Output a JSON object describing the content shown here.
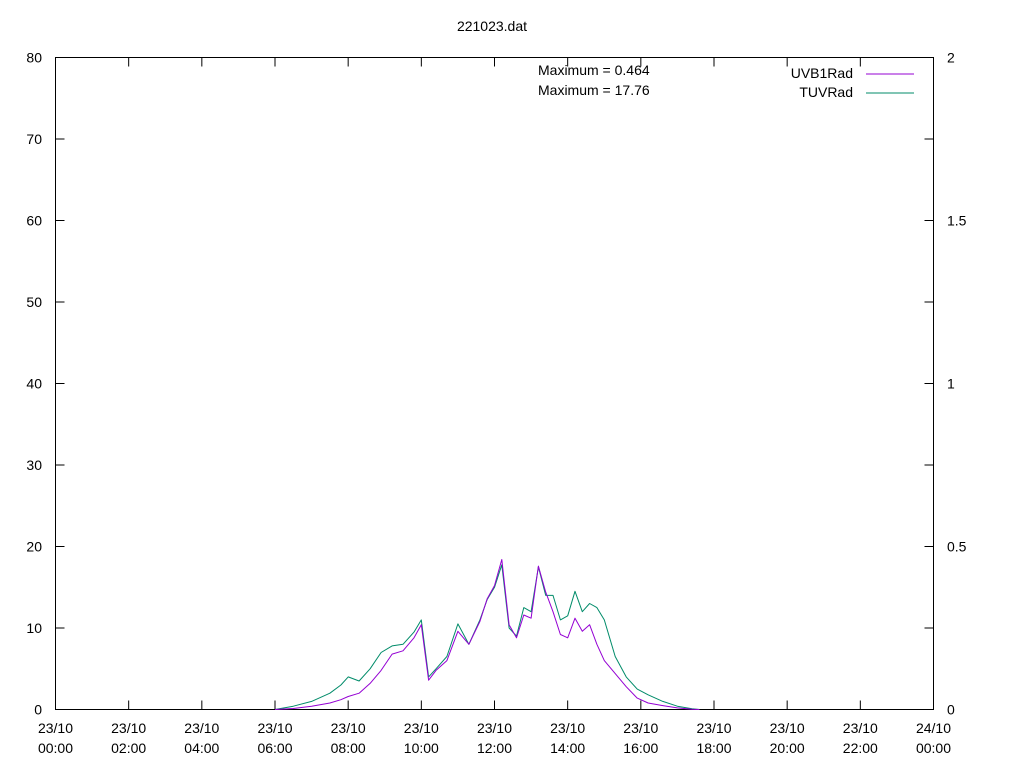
{
  "chart_data": {
    "type": "line",
    "title": "221023.dat",
    "x_tick_labels": [
      [
        "23/10",
        "00:00"
      ],
      [
        "23/10",
        "02:00"
      ],
      [
        "23/10",
        "04:00"
      ],
      [
        "23/10",
        "06:00"
      ],
      [
        "23/10",
        "08:00"
      ],
      [
        "23/10",
        "10:00"
      ],
      [
        "23/10",
        "12:00"
      ],
      [
        "23/10",
        "14:00"
      ],
      [
        "23/10",
        "16:00"
      ],
      [
        "23/10",
        "18:00"
      ],
      [
        "23/10",
        "20:00"
      ],
      [
        "23/10",
        "22:00"
      ],
      [
        "24/10",
        "00:00"
      ]
    ],
    "x_range_hours": [
      0,
      24
    ],
    "y_left": {
      "range": [
        0,
        80
      ],
      "ticks": [
        0,
        10,
        20,
        30,
        40,
        50,
        60,
        70,
        80
      ]
    },
    "y_right": {
      "range": [
        0,
        2
      ],
      "ticks": [
        0,
        0.5,
        1,
        1.5,
        2
      ],
      "tick_labels": [
        "0",
        "0.5",
        "1",
        "1.5",
        "2"
      ]
    },
    "grid": false,
    "legend_position": "top-right",
    "annotations": [
      "Maximum = 0.464",
      "Maximum = 17.76"
    ],
    "series": [
      {
        "name": "UVB1Rad",
        "axis": "right",
        "color": "#9400d3",
        "x_hours": [
          6.0,
          6.5,
          7.0,
          7.5,
          7.8,
          8.0,
          8.3,
          8.6,
          8.9,
          9.2,
          9.5,
          9.8,
          10.0,
          10.2,
          10.4,
          10.7,
          11.0,
          11.3,
          11.6,
          11.8,
          12.0,
          12.2,
          12.4,
          12.6,
          12.8,
          13.0,
          13.2,
          13.4,
          13.6,
          13.8,
          14.0,
          14.2,
          14.4,
          14.6,
          14.8,
          15.0,
          15.3,
          15.6,
          15.9,
          16.2,
          16.6,
          17.0,
          17.4,
          17.6
        ],
        "values": [
          0,
          0.003,
          0.01,
          0.02,
          0.03,
          0.04,
          0.05,
          0.08,
          0.12,
          0.17,
          0.18,
          0.22,
          0.26,
          0.09,
          0.12,
          0.15,
          0.24,
          0.2,
          0.27,
          0.34,
          0.38,
          0.46,
          0.26,
          0.22,
          0.29,
          0.28,
          0.44,
          0.36,
          0.3,
          0.23,
          0.22,
          0.28,
          0.24,
          0.26,
          0.2,
          0.15,
          0.11,
          0.07,
          0.035,
          0.02,
          0.012,
          0.005,
          0.001,
          0
        ]
      },
      {
        "name": "TUVRad",
        "axis": "left",
        "color": "#008b69",
        "x_hours": [
          6.0,
          6.5,
          7.0,
          7.5,
          7.8,
          8.0,
          8.3,
          8.6,
          8.9,
          9.2,
          9.5,
          9.8,
          10.0,
          10.2,
          10.4,
          10.7,
          11.0,
          11.3,
          11.6,
          11.8,
          12.0,
          12.2,
          12.4,
          12.6,
          12.8,
          13.0,
          13.2,
          13.4,
          13.6,
          13.8,
          14.0,
          14.2,
          14.4,
          14.6,
          14.8,
          15.0,
          15.3,
          15.6,
          15.9,
          16.2,
          16.6,
          17.0,
          17.4,
          17.6
        ],
        "values": [
          0,
          0.4,
          1.0,
          2.0,
          3.0,
          4.0,
          3.5,
          5.0,
          7.0,
          7.8,
          8.0,
          9.5,
          11.0,
          4.0,
          5.0,
          6.5,
          10.5,
          8.0,
          11.0,
          13.5,
          15.0,
          17.76,
          10.0,
          9.0,
          12.5,
          12.0,
          17.5,
          14.0,
          14.0,
          11.0,
          11.5,
          14.5,
          12.0,
          13.0,
          12.5,
          11.0,
          6.5,
          4.0,
          2.5,
          1.8,
          1.0,
          0.4,
          0.1,
          0
        ]
      }
    ]
  }
}
